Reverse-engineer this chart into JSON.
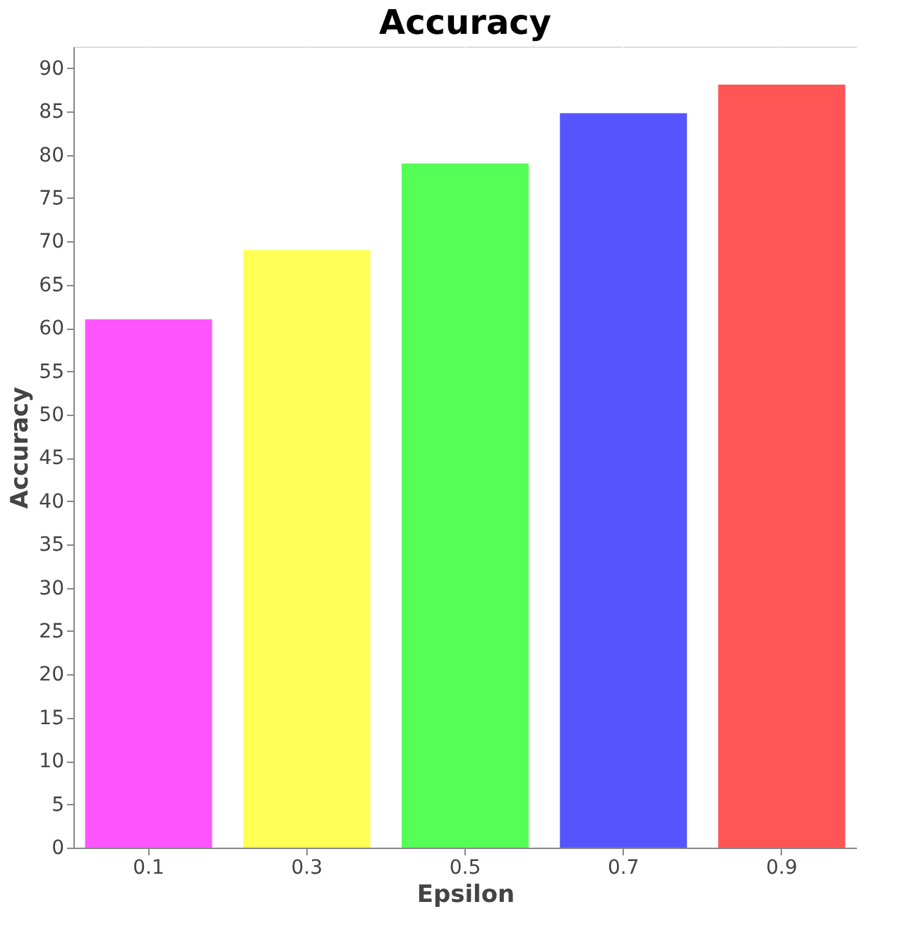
{
  "chart_data": {
    "type": "bar",
    "title": "Accuracy",
    "xlabel": "Epsilon",
    "ylabel": "Accuracy",
    "categories": [
      "0.1",
      "0.3",
      "0.5",
      "0.7",
      "0.9"
    ],
    "values": [
      61,
      69,
      79,
      84.8,
      88.1
    ],
    "colors": [
      "#ff55ff",
      "#ffff55",
      "#55ff55",
      "#5555ff",
      "#ff5555"
    ],
    "ylim": [
      0,
      92.5
    ],
    "yticks": [
      0,
      5,
      10,
      15,
      20,
      25,
      30,
      35,
      40,
      45,
      50,
      55,
      60,
      65,
      70,
      75,
      80,
      85,
      90
    ],
    "grid": true
  }
}
